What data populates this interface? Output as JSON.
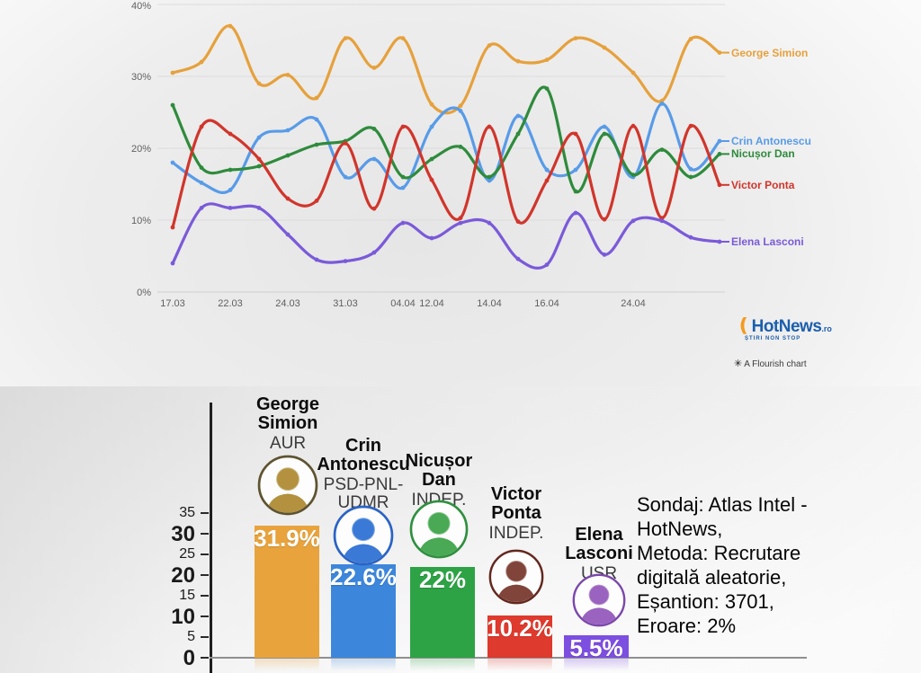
{
  "chart_data": [
    {
      "type": "line",
      "title": "",
      "n_points": 20,
      "ylim": [
        0,
        40
      ],
      "y_tick_labels": [
        "0%",
        "10%",
        "20%",
        "30%",
        "40%"
      ],
      "grid": true,
      "legend_position": "right-of-line-end",
      "x_ticks": [
        {
          "i": 0,
          "label": "17.03"
        },
        {
          "i": 2,
          "label": "22.03"
        },
        {
          "i": 4,
          "label": "24.03"
        },
        {
          "i": 6,
          "label": "31.03"
        },
        {
          "i": 8,
          "label": "04.04"
        },
        {
          "i": 9,
          "label": "12.04"
        },
        {
          "i": 11,
          "label": "14.04"
        },
        {
          "i": 13,
          "label": "16.04"
        },
        {
          "i": 16,
          "label": "24.04"
        }
      ],
      "series": [
        {
          "name": "George Simion",
          "color": "#E6A13C",
          "values": [
            30.5,
            32,
            37,
            29,
            30.2,
            27,
            35.3,
            31.2,
            35.3,
            26.1,
            25.9,
            34.3,
            32.1,
            32.3,
            35.3,
            34,
            30.5,
            26.6,
            35.2,
            33.3
          ]
        },
        {
          "name": "Crin Antonescu",
          "color": "#589BE8",
          "values": [
            18,
            15.2,
            14.2,
            21.5,
            22.5,
            24,
            16,
            18.5,
            14.5,
            23,
            25.2,
            15.5,
            24.5,
            17,
            17,
            23,
            16,
            26.2,
            17.1,
            21
          ]
        },
        {
          "name": "Nicușor Dan",
          "color": "#2E8B3C",
          "values": [
            26,
            17.3,
            17,
            17.5,
            19,
            20.5,
            21,
            22.7,
            16,
            18.5,
            20.2,
            16,
            22,
            28.3,
            14,
            22,
            16.3,
            19.8,
            16,
            19.2
          ]
        },
        {
          "name": "Victor Ponta",
          "color": "#D1352B",
          "values": [
            9,
            23,
            22,
            18.5,
            13,
            12.7,
            20.7,
            11.6,
            23,
            15.6,
            10.3,
            23,
            9.8,
            15.5,
            22,
            10.1,
            23.1,
            10.3,
            23.1,
            14.9
          ]
        },
        {
          "name": "Elena Lasconi",
          "color": "#7A5AD9",
          "values": [
            4,
            11.7,
            11.7,
            11.7,
            8,
            4.5,
            4.3,
            5.5,
            9.6,
            7.5,
            9.6,
            9.6,
            4.6,
            3.8,
            11,
            5.2,
            9.9,
            9.9,
            7.6,
            7
          ]
        }
      ]
    },
    {
      "type": "bar",
      "title": "",
      "ylim": [
        0,
        38
      ],
      "yticks": [
        0,
        5,
        10,
        15,
        20,
        25,
        30,
        35
      ],
      "categories": [
        "George Simion",
        "Crin Antonescu",
        "Nicușor Dan",
        "Victor Ponta",
        "Elena Lasconi"
      ],
      "values": [
        31.9,
        22.6,
        22,
        10.2,
        5.5
      ],
      "candidates": [
        {
          "name_lines": [
            "George",
            "Simion"
          ],
          "party_lines": [
            "AUR"
          ],
          "value": 31.9,
          "label": "31.9%",
          "color": "#E8A33C",
          "photo_tint": "#b3913e",
          "photo_border": "#5e5330"
        },
        {
          "name_lines": [
            "Crin",
            "Antonescu"
          ],
          "party_lines": [
            "PSD-PNL-",
            "UDMR"
          ],
          "value": 22.6,
          "label": "22.6%",
          "color": "#3C86DC",
          "photo_tint": "#3a79d6",
          "photo_border": "#2b63c4"
        },
        {
          "name_lines": [
            "Nicușor",
            "Dan"
          ],
          "party_lines": [
            "INDEP."
          ],
          "value": 22,
          "label": "22%",
          "color": "#2DA345",
          "photo_tint": "#49a954",
          "photo_border": "#2f8f3f"
        },
        {
          "name_lines": [
            "Victor",
            "Ponta"
          ],
          "party_lines": [
            "INDEP."
          ],
          "value": 10.2,
          "label": "10.2%",
          "color": "#DE3A2D",
          "photo_tint": "#80443a",
          "photo_border": "#64281f"
        },
        {
          "name_lines": [
            "Elena",
            "Lasconi"
          ],
          "party_lines": [
            "USR"
          ],
          "value": 5.5,
          "label": "5.5%",
          "color": "#7C4FE0",
          "photo_tint": "#9a63c0",
          "photo_border": "#7b47ab"
        }
      ]
    }
  ],
  "branding": {
    "logo_text": "HotNews",
    "logo_suffix": ".ro",
    "logo_tagline": "ȘTIRI NON STOP",
    "logo_color": "#1b5fad",
    "logo_accent_color": "#f59a1e",
    "attribution": "A Flourish chart",
    "attribution_icon": "✳"
  },
  "footnote": {
    "lines": [
      "Sondaj: Atlas Intel -",
      "HotNews,",
      "Metoda: Recrutare",
      "digitală aleatorie,",
      "Eșantion: 3701,",
      "Eroare: 2%"
    ]
  }
}
